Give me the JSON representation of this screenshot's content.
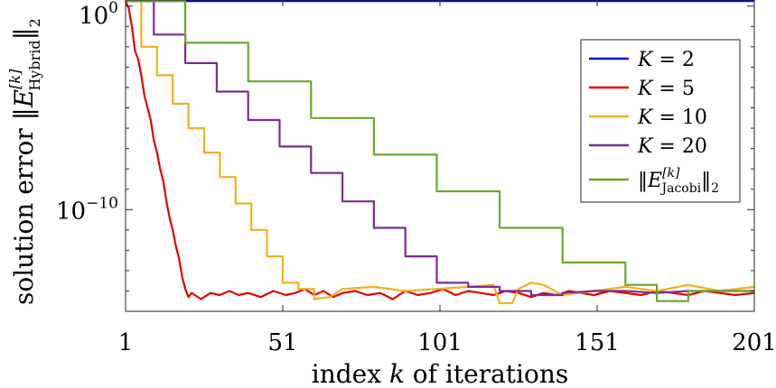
{
  "chart_data": {
    "type": "line",
    "title": "",
    "xlabel_parts": [
      "index ",
      "k",
      " of iterations"
    ],
    "ylabel_parts": [
      "solution error ",
      "‖E",
      "[k]",
      "Hybrid",
      "‖",
      "2"
    ],
    "xlim": [
      1,
      201
    ],
    "ylim_log10": [
      -15,
      0.3
    ],
    "yscale": "log",
    "x_ticks": [
      1,
      51,
      101,
      151,
      201
    ],
    "x_tick_labels": [
      "1",
      "51",
      "101",
      "151",
      "201"
    ],
    "y_ticks_log10": [
      0,
      -10
    ],
    "y_tick_labels": [
      {
        "base": "10",
        "exp": "0"
      },
      {
        "base": "10",
        "exp": "−10"
      }
    ],
    "legend_position": "top-right",
    "colors": {
      "K2": "#0000e6",
      "K5": "#e60000",
      "K10": "#f0b020",
      "K20": "#7b2d8e",
      "Jacobi": "#6aa62e"
    },
    "series": [
      {
        "key": "K2",
        "name": "K = 2",
        "legend_parts": [
          "K",
          " = 2"
        ],
        "points_log10": [
          [
            1,
            0.25
          ],
          [
            201,
            0.25
          ]
        ]
      },
      {
        "key": "K5",
        "name": "K = 5",
        "legend_parts": [
          "K",
          " = 5"
        ],
        "points_log10": [
          [
            1,
            0.25
          ],
          [
            2,
            -0.1
          ],
          [
            3,
            -1.0
          ],
          [
            4,
            -2.2
          ],
          [
            5,
            -2.6
          ],
          [
            6,
            -3.4
          ],
          [
            7,
            -4.4
          ],
          [
            8,
            -5.0
          ],
          [
            9,
            -5.6
          ],
          [
            10,
            -6.6
          ],
          [
            11,
            -7.2
          ],
          [
            12,
            -8.0
          ],
          [
            13,
            -8.6
          ],
          [
            14,
            -9.6
          ],
          [
            15,
            -10.4
          ],
          [
            16,
            -11.0
          ],
          [
            17,
            -11.8
          ],
          [
            18,
            -12.4
          ],
          [
            19,
            -13.3
          ],
          [
            20,
            -13.9
          ],
          [
            21,
            -14.3
          ],
          [
            22,
            -14.1
          ],
          [
            23,
            -14.2
          ],
          [
            25,
            -14.4
          ],
          [
            28,
            -14.1
          ],
          [
            31,
            -14.2
          ],
          [
            34,
            -14.0
          ],
          [
            37,
            -14.2
          ],
          [
            40,
            -14.1
          ],
          [
            44,
            -14.3
          ],
          [
            48,
            -14.0
          ],
          [
            52,
            -14.2
          ],
          [
            55,
            -14.1
          ],
          [
            58,
            -13.9
          ],
          [
            61,
            -14.2
          ],
          [
            64,
            -14.0
          ],
          [
            67,
            -14.3
          ],
          [
            70,
            -14.1
          ],
          [
            74,
            -14.0
          ],
          [
            78,
            -14.2
          ],
          [
            82,
            -14.1
          ],
          [
            86,
            -14.4
          ],
          [
            90,
            -14.0
          ],
          [
            94,
            -14.2
          ],
          [
            98,
            -14.1
          ],
          [
            102,
            -13.9
          ],
          [
            106,
            -14.2
          ],
          [
            110,
            -14.0
          ],
          [
            114,
            -14.1
          ],
          [
            118,
            -14.2
          ],
          [
            122,
            -14.0
          ],
          [
            126,
            -14.1
          ],
          [
            130,
            -14.3
          ],
          [
            134,
            -14.1
          ],
          [
            138,
            -14.2
          ],
          [
            142,
            -14.0
          ],
          [
            146,
            -14.1
          ],
          [
            150,
            -14.2
          ],
          [
            155,
            -14.0
          ],
          [
            160,
            -14.1
          ],
          [
            165,
            -14.2
          ],
          [
            170,
            -14.0
          ],
          [
            175,
            -14.1
          ],
          [
            180,
            -14.2
          ],
          [
            185,
            -14.0
          ],
          [
            190,
            -14.1
          ],
          [
            195,
            -14.2
          ],
          [
            201,
            -14.1
          ]
        ]
      },
      {
        "key": "K10",
        "name": "K = 10",
        "legend_parts": [
          "K",
          " = 10"
        ],
        "points_log10": [
          [
            1,
            0.25
          ],
          [
            6,
            0.25
          ],
          [
            6,
            -2.0
          ],
          [
            11,
            -2.0
          ],
          [
            11,
            -3.4
          ],
          [
            16,
            -3.4
          ],
          [
            16,
            -4.8
          ],
          [
            21,
            -4.8
          ],
          [
            21,
            -6.0
          ],
          [
            26,
            -6.0
          ],
          [
            26,
            -7.2
          ],
          [
            31,
            -7.2
          ],
          [
            31,
            -8.4
          ],
          [
            36,
            -8.4
          ],
          [
            36,
            -9.7
          ],
          [
            41,
            -9.7
          ],
          [
            41,
            -11.0
          ],
          [
            46,
            -11.0
          ],
          [
            46,
            -12.3
          ],
          [
            51,
            -12.3
          ],
          [
            51,
            -13.6
          ],
          [
            56,
            -13.6
          ],
          [
            56,
            -13.9
          ],
          [
            61,
            -13.9
          ],
          [
            61,
            -14.4
          ],
          [
            66,
            -14.3
          ],
          [
            70,
            -13.9
          ],
          [
            80,
            -13.8
          ],
          [
            90,
            -14.0
          ],
          [
            100,
            -13.9
          ],
          [
            110,
            -13.8
          ],
          [
            118,
            -13.7
          ],
          [
            120,
            -14.6
          ],
          [
            124,
            -14.6
          ],
          [
            126,
            -13.9
          ],
          [
            130,
            -13.6
          ],
          [
            134,
            -13.7
          ],
          [
            140,
            -14.2
          ],
          [
            150,
            -14.0
          ],
          [
            160,
            -13.8
          ],
          [
            170,
            -14.0
          ],
          [
            180,
            -13.7
          ],
          [
            190,
            -14.0
          ],
          [
            201,
            -13.8
          ]
        ]
      },
      {
        "key": "K20",
        "name": "K = 20",
        "legend_parts": [
          "K",
          " = 20"
        ],
        "points_log10": [
          [
            1,
            0.25
          ],
          [
            10,
            0.25
          ],
          [
            10,
            -1.4
          ],
          [
            20,
            -1.4
          ],
          [
            20,
            -2.8
          ],
          [
            30,
            -2.8
          ],
          [
            30,
            -4.2
          ],
          [
            40,
            -4.2
          ],
          [
            40,
            -5.6
          ],
          [
            50,
            -5.6
          ],
          [
            50,
            -6.9
          ],
          [
            60,
            -6.9
          ],
          [
            60,
            -8.2
          ],
          [
            70,
            -8.2
          ],
          [
            70,
            -9.6
          ],
          [
            80,
            -9.6
          ],
          [
            80,
            -10.9
          ],
          [
            90,
            -10.9
          ],
          [
            90,
            -12.3
          ],
          [
            100,
            -12.3
          ],
          [
            100,
            -13.6
          ],
          [
            110,
            -13.6
          ],
          [
            110,
            -13.8
          ],
          [
            120,
            -13.8
          ],
          [
            120,
            -14.0
          ],
          [
            130,
            -14.0
          ],
          [
            130,
            -14.2
          ],
          [
            140,
            -14.2
          ],
          [
            140,
            -14.1
          ],
          [
            150,
            -14.0
          ],
          [
            160,
            -14.0
          ],
          [
            170,
            -14.1
          ],
          [
            180,
            -14.0
          ],
          [
            190,
            -14.0
          ],
          [
            201,
            -14.0
          ]
        ]
      },
      {
        "key": "Jacobi",
        "name": "‖E[k] Jacobi‖2",
        "legend_parts": [
          "‖E",
          "[k]",
          "Jacobi",
          "‖",
          "2"
        ],
        "points_log10": [
          [
            1,
            0.25
          ],
          [
            20,
            0.25
          ],
          [
            20,
            -1.8
          ],
          [
            40,
            -1.8
          ],
          [
            40,
            -3.7
          ],
          [
            60,
            -3.7
          ],
          [
            60,
            -5.5
          ],
          [
            80,
            -5.5
          ],
          [
            80,
            -7.3
          ],
          [
            100,
            -7.3
          ],
          [
            100,
            -9.1
          ],
          [
            120,
            -9.1
          ],
          [
            120,
            -10.9
          ],
          [
            140,
            -10.9
          ],
          [
            140,
            -12.6
          ],
          [
            160,
            -12.6
          ],
          [
            160,
            -13.7
          ],
          [
            170,
            -13.7
          ],
          [
            170,
            -14.5
          ],
          [
            180,
            -14.5
          ],
          [
            180,
            -14.0
          ],
          [
            190,
            -14.0
          ],
          [
            201,
            -14.0
          ]
        ]
      }
    ]
  }
}
